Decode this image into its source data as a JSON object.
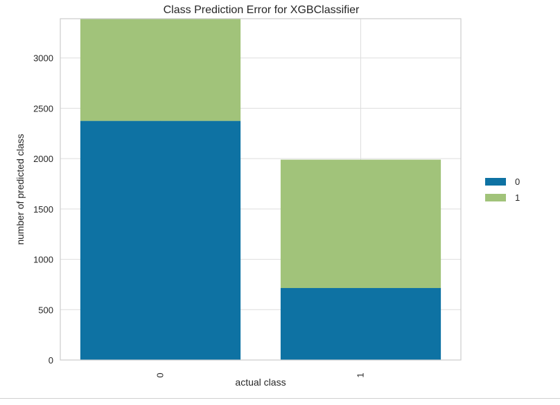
{
  "chart_data": {
    "type": "bar",
    "stacked": true,
    "title": "Class Prediction Error for XGBClassifier",
    "xlabel": "actual class",
    "ylabel": "number of predicted class",
    "categories": [
      "0",
      "1"
    ],
    "series": [
      {
        "name": "0",
        "color": "#0e72a3",
        "values": [
          2375,
          715
        ]
      },
      {
        "name": "1",
        "color": "#a1c37a",
        "values": [
          1015,
          1275
        ]
      }
    ],
    "ylim": [
      0,
      3390
    ],
    "yticks": [
      0,
      500,
      1000,
      1500,
      2000,
      2500,
      3000
    ],
    "grid": true,
    "legend_position": "right",
    "xtick_rotation": 90
  }
}
